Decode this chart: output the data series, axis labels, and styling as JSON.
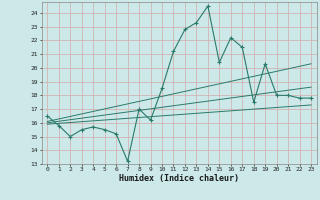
{
  "xlabel": "Humidex (Indice chaleur)",
  "x_ticks": [
    0,
    1,
    2,
    3,
    4,
    5,
    6,
    7,
    8,
    9,
    10,
    11,
    12,
    13,
    14,
    15,
    16,
    17,
    18,
    19,
    20,
    21,
    22,
    23
  ],
  "ylim": [
    13,
    24.8
  ],
  "yticks": [
    13,
    14,
    15,
    16,
    17,
    18,
    19,
    20,
    21,
    22,
    23,
    24
  ],
  "xlim": [
    -0.5,
    23.5
  ],
  "bg_color": "#cce8e8",
  "grid_color": "#b8d4d4",
  "line_color": "#2a7a6a",
  "main_line_x": [
    0,
    1,
    2,
    3,
    4,
    5,
    6,
    7,
    8,
    9,
    10,
    11,
    12,
    13,
    14,
    15,
    16,
    17,
    18,
    19,
    20,
    21,
    22,
    23
  ],
  "main_line_y": [
    16.5,
    15.8,
    15.0,
    15.5,
    15.7,
    15.5,
    15.2,
    13.2,
    17.0,
    16.2,
    18.5,
    21.2,
    22.8,
    23.3,
    24.5,
    20.4,
    22.2,
    21.5,
    17.5,
    20.3,
    18.0,
    18.0,
    17.8,
    17.8
  ],
  "reg_line1_x": [
    0,
    23
  ],
  "reg_line1_y": [
    16.1,
    20.3
  ],
  "reg_line2_x": [
    0,
    23
  ],
  "reg_line2_y": [
    16.0,
    18.6
  ],
  "reg_line3_x": [
    0,
    23
  ],
  "reg_line3_y": [
    15.9,
    17.3
  ]
}
